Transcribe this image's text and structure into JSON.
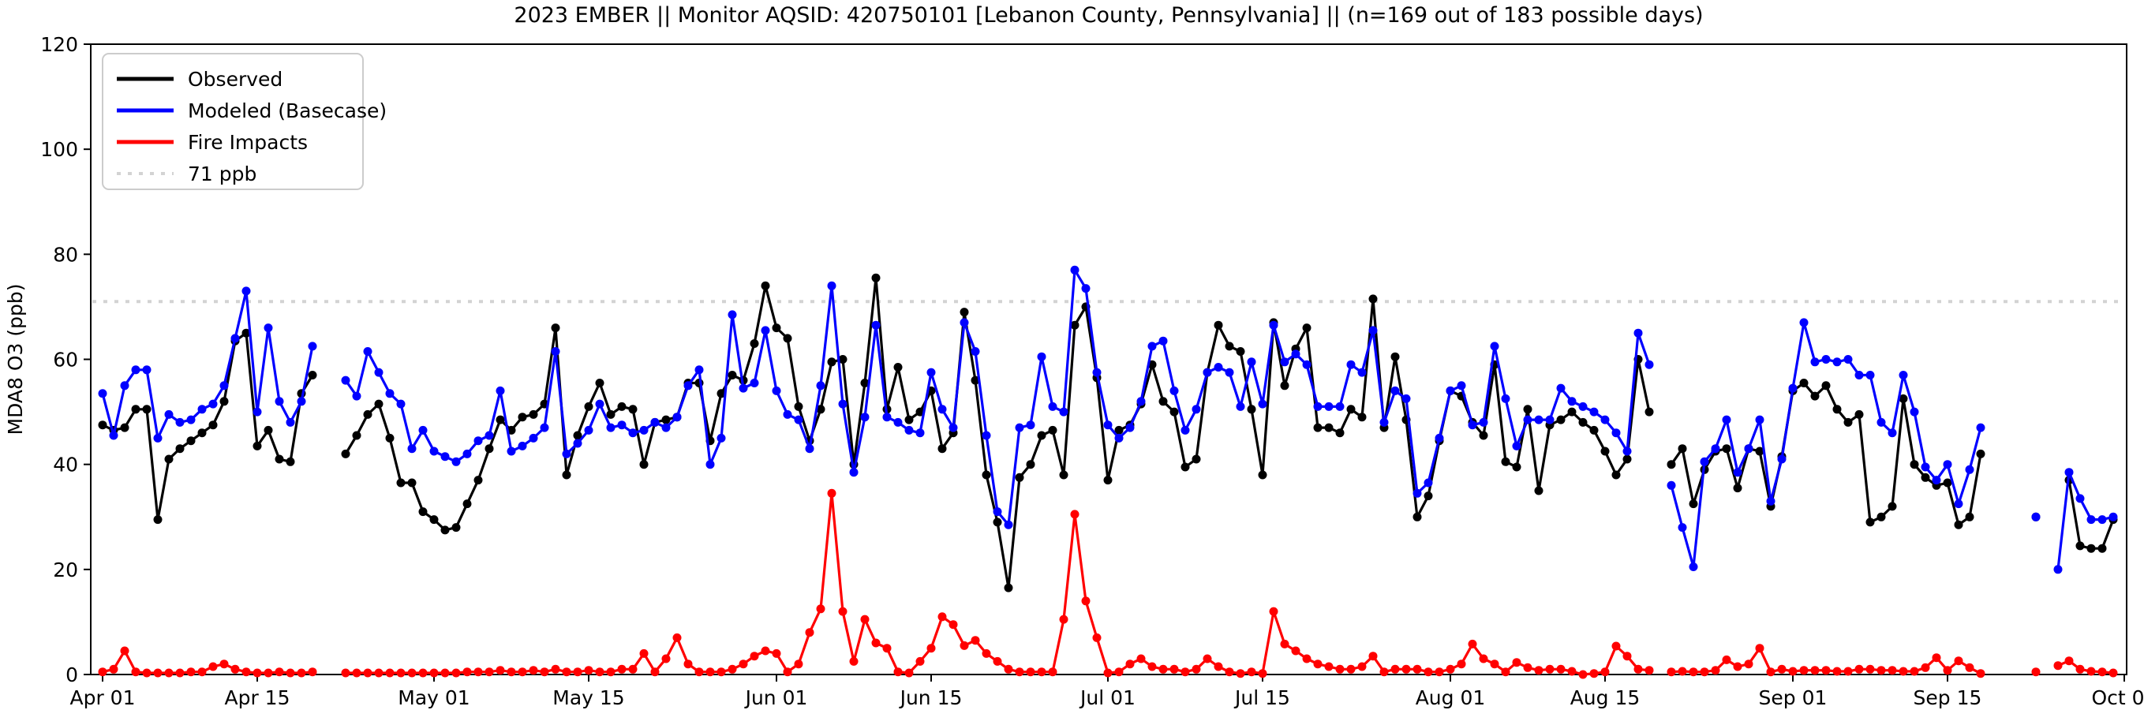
{
  "title": "2023 EMBER || Monitor AQSID: 420750101 [Lebanon County, Pennsylvania] || (n=169 out of 183 possible days)",
  "ylabel": "MDA8 O3 (ppb)",
  "colors": {
    "observed": "#000000",
    "modeled": "#0000ff",
    "fire": "#ff0000",
    "threshold": "#d3d3d3",
    "axis": "#000000"
  },
  "chart_data": {
    "type": "line",
    "title": "2023 EMBER || Monitor AQSID: 420750101 [Lebanon County, Pennsylvania] || (n=169 out of 183 possible days)",
    "xlabel": "",
    "ylabel": "MDA8 O3 (ppb)",
    "ylim": [
      0,
      120
    ],
    "yticks": [
      0,
      20,
      40,
      60,
      80,
      100,
      120
    ],
    "grid": false,
    "legend_position": "upper-left",
    "threshold_line": {
      "label": "71 ppb",
      "value": 71,
      "style": "dotted",
      "color": "#d3d3d3"
    },
    "x_start_date": "Apr 01",
    "x_end_date": "Oct 01",
    "xtick_day_index": [
      0,
      14,
      30,
      44,
      61,
      75,
      91,
      105,
      122,
      136,
      153,
      167,
      183
    ],
    "xtick_labels": [
      "Apr 01",
      "Apr 15",
      "May 01",
      "May 15",
      "Jun 01",
      "Jun 15",
      "Jul 01",
      "Jul 15",
      "Aug 01",
      "Aug 15",
      "Sep 01",
      "Sep 15",
      "Oct 01"
    ],
    "series": [
      {
        "name": "Observed",
        "color": "#000000",
        "values": [
          47.5,
          46.5,
          47,
          50.5,
          50.5,
          29.5,
          41,
          43,
          44.5,
          46,
          47.5,
          52,
          63.5,
          65,
          43.5,
          46.5,
          41,
          40.5,
          53.5,
          57,
          null,
          null,
          42,
          45.5,
          49.5,
          51.5,
          45,
          36.5,
          36.5,
          31,
          29.5,
          27.5,
          28,
          32.5,
          37,
          43,
          48.5,
          46.5,
          49,
          49.5,
          51.5,
          66,
          38,
          45.5,
          51,
          55.5,
          49.5,
          51,
          50.5,
          40,
          48,
          48.5,
          49,
          55.5,
          55.5,
          44.5,
          53.5,
          57,
          56,
          63,
          74,
          66,
          64,
          51,
          44.5,
          50.5,
          59.5,
          60,
          40,
          55.5,
          75.5,
          50.5,
          58.5,
          48.5,
          50,
          54,
          43,
          46,
          69,
          56,
          38,
          29,
          16.5,
          37.5,
          40,
          45.5,
          46.5,
          38,
          66.5,
          70,
          56.5,
          37,
          46.5,
          47.5,
          51.5,
          59,
          52,
          50,
          39.5,
          41,
          57.5,
          66.5,
          62.5,
          61.5,
          50.5,
          38,
          67,
          55,
          62,
          66,
          47,
          47,
          46,
          50.5,
          49,
          71.5,
          47,
          60.5,
          48.5,
          30,
          34,
          44.5,
          54,
          53,
          48,
          45.5,
          59,
          40.5,
          39.5,
          50.5,
          35,
          47.5,
          48.5,
          50,
          48,
          46.5,
          42.5,
          38,
          41,
          60,
          50,
          null,
          40,
          43,
          32.5,
          39,
          42.5,
          43,
          35.5,
          43,
          42.5,
          32,
          41.5,
          54,
          55.5,
          53,
          55,
          50.5,
          48,
          49.5,
          29,
          30,
          32,
          52.5,
          40,
          37.5,
          36,
          36.5,
          28.5,
          30,
          42,
          null,
          null,
          null,
          null,
          30,
          null,
          null,
          37,
          24.5,
          24,
          24,
          29.5
        ]
      },
      {
        "name": "Modeled (Basecase)",
        "color": "#0000ff",
        "values": [
          53.5,
          45.5,
          55,
          58,
          58,
          45,
          49.5,
          48,
          48.5,
          50.5,
          51.5,
          55,
          64,
          73,
          50,
          66,
          52,
          48,
          52,
          62.5,
          null,
          null,
          56,
          53,
          61.5,
          57.5,
          53.5,
          51.5,
          43,
          46.5,
          42.5,
          41.5,
          40.5,
          42,
          44.5,
          45.5,
          54,
          42.5,
          43.5,
          45,
          47,
          61.5,
          42,
          44,
          46.5,
          51.5,
          47,
          47.5,
          46,
          46.5,
          48,
          47,
          49,
          55,
          58,
          40,
          45,
          68.5,
          54.5,
          55.5,
          65.5,
          54,
          49.5,
          48.5,
          43,
          55,
          74,
          51.5,
          38.5,
          49,
          66.5,
          49,
          48,
          46.5,
          46,
          57.5,
          50.5,
          47,
          67,
          61.5,
          45.5,
          31,
          28.5,
          47,
          47.5,
          60.5,
          51,
          50,
          77,
          73.5,
          57.5,
          47.5,
          45,
          47,
          52,
          62.5,
          63.5,
          54,
          46.5,
          50.5,
          57.5,
          58.5,
          57.5,
          51,
          59.5,
          51.5,
          66.5,
          59.5,
          61,
          59,
          51,
          51,
          51,
          59,
          57.5,
          65.5,
          48,
          54,
          52.5,
          34.5,
          36.5,
          45,
          54,
          55,
          47.5,
          48,
          62.5,
          52.5,
          43.5,
          48.5,
          48.5,
          48.5,
          54.5,
          52,
          51,
          50,
          48.5,
          46,
          42.5,
          65,
          59,
          null,
          36,
          28,
          20.5,
          40.5,
          43,
          48.5,
          38.5,
          43,
          48.5,
          33,
          41,
          54.5,
          67,
          59.5,
          60,
          59.5,
          60,
          57,
          57,
          48,
          46,
          57,
          50,
          39.5,
          37,
          40,
          32.5,
          39,
          47,
          null,
          null,
          null,
          null,
          30,
          null,
          20,
          38.5,
          33.5,
          29.5,
          29.5,
          30
        ]
      },
      {
        "name": "Fire Impacts",
        "color": "#ff0000",
        "values": [
          0.5,
          1,
          4.5,
          0.5,
          0.3,
          0.3,
          0.3,
          0.3,
          0.5,
          0.5,
          1.5,
          2,
          1,
          0.5,
          0.3,
          0.3,
          0.5,
          0.3,
          0.3,
          0.5,
          null,
          null,
          0.3,
          0.3,
          0.3,
          0.3,
          0.3,
          0.3,
          0.3,
          0.3,
          0.3,
          0.3,
          0.3,
          0.5,
          0.5,
          0.5,
          0.8,
          0.5,
          0.5,
          0.8,
          0.5,
          1,
          0.5,
          0.5,
          0.8,
          0.5,
          0.5,
          1,
          1,
          4,
          0.5,
          3,
          7,
          2,
          0.5,
          0.5,
          0.5,
          1,
          2,
          3.5,
          4.5,
          4,
          0.5,
          2,
          8,
          12.5,
          34.5,
          12,
          2.5,
          10.5,
          6,
          5,
          0.5,
          0.3,
          2.5,
          5,
          11,
          9.5,
          5.5,
          6.5,
          4,
          2.5,
          1,
          0.5,
          0.5,
          0.5,
          0.5,
          10.5,
          30.5,
          14,
          7,
          0.3,
          0.5,
          2,
          3,
          1.5,
          1,
          1,
          0.5,
          1,
          3,
          1.5,
          0.5,
          0.2,
          0.5,
          0.2,
          12,
          5.8,
          4.5,
          3,
          2,
          1.5,
          1,
          1,
          1.5,
          3.5,
          0.5,
          1,
          1,
          1,
          0.5,
          0.5,
          1,
          2,
          5.8,
          3,
          2,
          0.5,
          2.3,
          1.3,
          0.8,
          1,
          1,
          0.6,
          0,
          0.2,
          0.5,
          5.4,
          3.5,
          1,
          0.8,
          null,
          0.5,
          0.6,
          0.5,
          0.5,
          0.8,
          2.8,
          1.5,
          2,
          5,
          0.5,
          1,
          0.6,
          0.8,
          0.8,
          0.8,
          0.6,
          0.6,
          1,
          1,
          0.8,
          0.8,
          0.6,
          0.6,
          1.3,
          3.2,
          0.8,
          2.6,
          1.3,
          0.2,
          null,
          null,
          null,
          null,
          0.5,
          null,
          1.7,
          2.6,
          1,
          0.6,
          0.5,
          0.3
        ]
      }
    ],
    "legend_entries": [
      "Observed",
      "Modeled (Basecase)",
      "Fire Impacts",
      "71 ppb"
    ]
  }
}
